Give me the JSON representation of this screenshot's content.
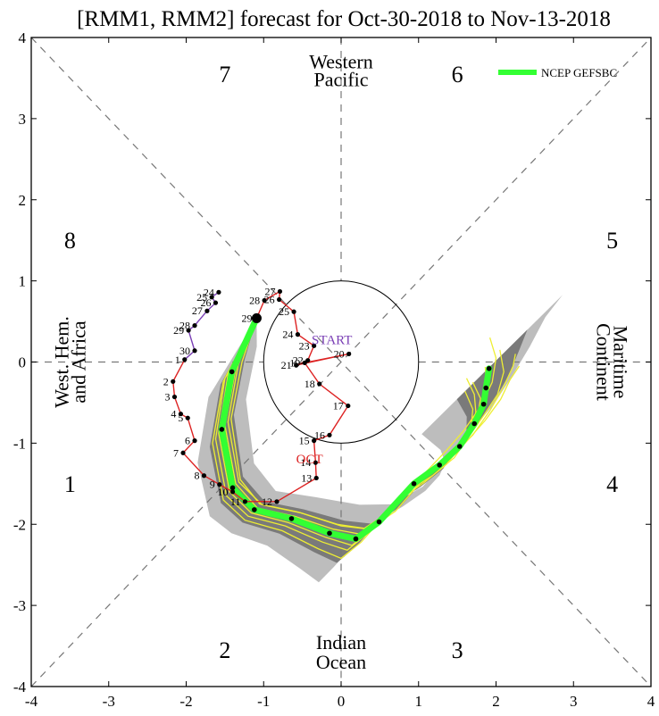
{
  "chart_data": {
    "type": "scatter",
    "title": "[RMM1, RMM2] forecast for Oct-30-2018 to Nov-13-2018",
    "xlim": [
      -4,
      4
    ],
    "ylim": [
      -4,
      4
    ],
    "x_ticks": [
      "-4",
      "-3",
      "-2",
      "-1",
      "0",
      "1",
      "2",
      "3",
      "4"
    ],
    "y_ticks": [
      "-4",
      "-3",
      "-2",
      "-1",
      "0",
      "1",
      "2",
      "3",
      "4"
    ],
    "grid": false,
    "legend_position": "top-right",
    "legend": [
      {
        "label": "NCEP GEFSBC",
        "color": "#33ff33"
      }
    ],
    "phases": [
      {
        "label": "1",
        "x": -3.5,
        "y": -1.5
      },
      {
        "label": "2",
        "x": -1.5,
        "y": -3.55
      },
      {
        "label": "3",
        "x": 1.5,
        "y": -3.55
      },
      {
        "label": "4",
        "x": 3.5,
        "y": -1.5
      },
      {
        "label": "5",
        "x": 3.5,
        "y": 1.5
      },
      {
        "label": "6",
        "x": 1.5,
        "y": 3.55
      },
      {
        "label": "7",
        "x": -1.5,
        "y": 3.55
      },
      {
        "label": "8",
        "x": -3.5,
        "y": 1.5
      }
    ],
    "regions": {
      "top": [
        "Western",
        "Pacific"
      ],
      "bottom": [
        "Indian",
        "Ocean"
      ],
      "left": [
        "West. Hem.",
        "and Africa"
      ],
      "right": [
        "Maritime",
        "Continent"
      ]
    },
    "annotations": {
      "start": "START",
      "oct": "OCT"
    },
    "colors": {
      "oct_track": "#dd2222",
      "sep_track": "#7a3fb5",
      "ensemble": "#eeee33",
      "mean": "#33ff33",
      "spread_outer": "#bdbdbd",
      "spread_inner": "#7a7a7a",
      "points": "#000000"
    },
    "observed_sep": [
      {
        "day": "24",
        "x": -1.58,
        "y": 0.86
      },
      {
        "day": "25",
        "x": -1.67,
        "y": 0.8
      },
      {
        "day": "26",
        "x": -1.62,
        "y": 0.73
      },
      {
        "day": "27",
        "x": -1.73,
        "y": 0.63
      },
      {
        "day": "28",
        "x": -1.89,
        "y": 0.45
      },
      {
        "day": "29",
        "x": -1.97,
        "y": 0.39
      },
      {
        "day": "30",
        "x": -1.89,
        "y": 0.14
      }
    ],
    "observed_oct": [
      {
        "day": "1",
        "x": -2.02,
        "y": 0.03
      },
      {
        "day": "2",
        "x": -2.17,
        "y": -0.24
      },
      {
        "day": "3",
        "x": -2.15,
        "y": -0.43
      },
      {
        "day": "4",
        "x": -2.07,
        "y": -0.64
      },
      {
        "day": "5",
        "x": -1.98,
        "y": -0.69
      },
      {
        "day": "6",
        "x": -1.89,
        "y": -0.97
      },
      {
        "day": "7",
        "x": -2.04,
        "y": -1.12
      },
      {
        "day": "8",
        "x": -1.77,
        "y": -1.4
      },
      {
        "day": "9",
        "x": -1.57,
        "y": -1.51
      },
      {
        "day": "10",
        "x": -1.4,
        "y": -1.6
      },
      {
        "day": "11",
        "x": -1.24,
        "y": -1.72
      },
      {
        "day": "12",
        "x": -0.83,
        "y": -1.72
      },
      {
        "day": "13",
        "x": -0.32,
        "y": -1.43
      },
      {
        "day": "14",
        "x": -0.33,
        "y": -1.24
      },
      {
        "day": "15",
        "x": -0.35,
        "y": -0.97
      },
      {
        "day": "16",
        "x": -0.15,
        "y": -0.9
      },
      {
        "day": "17",
        "x": 0.09,
        "y": -0.54
      },
      {
        "day": "18",
        "x": -0.28,
        "y": -0.27
      },
      {
        "day": "19",
        "x": -0.47,
        "y": -0.01
      },
      {
        "day": "20",
        "x": 0.1,
        "y": 0.1
      },
      {
        "day": "21",
        "x": -0.58,
        "y": -0.04
      },
      {
        "day": "22",
        "x": -0.43,
        "y": 0.02
      },
      {
        "day": "23",
        "x": -0.35,
        "y": 0.2
      },
      {
        "day": "24",
        "x": -0.56,
        "y": 0.34
      },
      {
        "day": "25",
        "x": -0.61,
        "y": 0.62
      },
      {
        "day": "26",
        "x": -0.8,
        "y": 0.77
      },
      {
        "day": "27",
        "x": -0.79,
        "y": 0.87
      },
      {
        "day": "28",
        "x": -0.99,
        "y": 0.76
      },
      {
        "day": "29",
        "x": -1.09,
        "y": 0.54
      }
    ],
    "forecast_mean": {
      "name": "NCEP GEFSBC",
      "x": [
        -1.09,
        -1.41,
        -1.54,
        -1.4,
        -1.12,
        -0.64,
        -0.15,
        0.19,
        0.49,
        0.94,
        1.27,
        1.53,
        1.72,
        1.84,
        1.87,
        1.91
      ],
      "y": [
        0.54,
        -0.12,
        -0.83,
        -1.55,
        -1.82,
        -1.93,
        -2.11,
        -2.18,
        -1.97,
        -1.5,
        -1.27,
        -1.04,
        -0.76,
        -0.52,
        -0.32,
        -0.08
      ]
    },
    "ensemble_members": [
      {
        "x": [
          -1.09,
          -1.28,
          -1.42,
          -1.3,
          -1.05,
          -0.55,
          -0.05,
          0.3,
          0.62,
          1.05,
          1.35,
          1.58,
          1.8,
          1.95,
          2.0,
          1.92
        ],
        "y": [
          0.54,
          0.0,
          -0.7,
          -1.45,
          -1.75,
          -1.85,
          -2.0,
          -2.05,
          -1.85,
          -1.4,
          -1.1,
          -0.85,
          -0.55,
          -0.25,
          0.05,
          0.3
        ]
      },
      {
        "x": [
          -1.09,
          -1.5,
          -1.62,
          -1.48,
          -1.2,
          -0.72,
          -0.24,
          0.08,
          0.36,
          0.82,
          1.18,
          1.46,
          1.65,
          1.76,
          1.8,
          1.7
        ],
        "y": [
          0.54,
          -0.2,
          -0.95,
          -1.65,
          -1.9,
          -2.02,
          -2.22,
          -2.32,
          -2.1,
          -1.62,
          -1.4,
          -1.18,
          -0.92,
          -0.68,
          -0.45,
          -0.25
        ]
      },
      {
        "x": [
          -1.09,
          -1.36,
          -1.5,
          -1.36,
          -1.08,
          -0.6,
          -0.1,
          0.24,
          0.56,
          1.0,
          1.34,
          1.62,
          1.84,
          2.02,
          2.1,
          2.05
        ],
        "y": [
          0.54,
          -0.08,
          -0.78,
          -1.5,
          -1.8,
          -1.9,
          -2.06,
          -2.12,
          -1.9,
          -1.44,
          -1.2,
          -0.96,
          -0.66,
          -0.4,
          -0.12,
          0.15
        ]
      },
      {
        "x": [
          -1.09,
          -1.46,
          -1.58,
          -1.44,
          -1.16,
          -0.68,
          -0.2,
          0.14,
          0.42,
          0.88,
          1.22,
          1.48,
          1.66,
          1.74,
          1.72,
          1.62
        ],
        "y": [
          0.54,
          -0.16,
          -0.88,
          -1.6,
          -1.86,
          -1.98,
          -2.16,
          -2.26,
          -2.04,
          -1.56,
          -1.34,
          -1.12,
          -0.86,
          -0.62,
          -0.4,
          -0.2
        ]
      },
      {
        "x": [
          -1.09,
          -1.33,
          -1.46,
          -1.32,
          -1.02,
          -0.52,
          0.0,
          0.36,
          0.7,
          1.12,
          1.44,
          1.7,
          1.92,
          2.1,
          2.22,
          2.25
        ],
        "y": [
          0.54,
          -0.04,
          -0.74,
          -1.48,
          -1.76,
          -1.86,
          -2.02,
          -2.06,
          -1.84,
          -1.38,
          -1.14,
          -0.9,
          -0.6,
          -0.3,
          -0.05,
          0.1
        ]
      },
      {
        "x": [
          -1.09,
          -1.52,
          -1.66,
          -1.52,
          -1.24,
          -0.76,
          -0.3,
          0.0,
          0.26,
          0.72,
          1.08,
          1.36,
          1.56,
          1.68,
          1.7,
          1.6
        ],
        "y": [
          0.54,
          -0.24,
          -1.0,
          -1.7,
          -1.95,
          -2.08,
          -2.3,
          -2.42,
          -2.22,
          -1.72,
          -1.48,
          -1.26,
          -1.02,
          -0.8,
          -0.58,
          -0.36
        ]
      },
      {
        "x": [
          -1.09,
          -1.4,
          -1.55,
          -1.42,
          -1.14,
          -0.66,
          -0.16,
          0.2,
          0.52,
          0.96,
          1.3,
          1.6,
          1.86,
          2.06,
          2.18,
          2.3
        ],
        "y": [
          0.54,
          -0.1,
          -0.82,
          -1.54,
          -1.82,
          -1.92,
          -2.1,
          -2.16,
          -1.96,
          -1.5,
          -1.24,
          -1.0,
          -0.72,
          -0.46,
          -0.22,
          -0.05
        ]
      },
      {
        "x": [
          -1.09,
          -1.44,
          -1.56,
          -1.4,
          -1.1,
          -0.62,
          -0.12,
          0.22,
          0.48,
          0.9,
          1.24,
          1.5,
          1.7,
          1.82,
          1.88,
          1.86
        ],
        "y": [
          0.54,
          -0.14,
          -0.86,
          -1.56,
          -1.84,
          -1.94,
          -2.12,
          -2.2,
          -1.98,
          -1.52,
          -1.28,
          -1.04,
          -0.78,
          -0.54,
          -0.3,
          -0.06
        ]
      }
    ]
  }
}
